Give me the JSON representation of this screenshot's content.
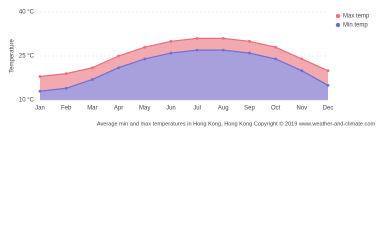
{
  "chart_data": {
    "type": "area",
    "y_label": "Temperature",
    "caption": "Average min and max temperatures in Hong Kong, Hong Kong   Copyright © 2019 www.weather-and-climate.com",
    "categories": [
      "Jan",
      "Feb",
      "Mar",
      "Apr",
      "May",
      "Jun",
      "Jul",
      "Aug",
      "Sep",
      "Oct",
      "Nov",
      "Dec"
    ],
    "series": [
      {
        "name": "Max temp",
        "color": "#e8707a",
        "fill": "#f2a9b0",
        "values": [
          18,
          19,
          21,
          25,
          28,
          30,
          31,
          31,
          30,
          28,
          24,
          20
        ]
      },
      {
        "name": "Min temp",
        "color": "#6f6fd2",
        "fill": "#a7a0dc",
        "values": [
          13,
          14,
          17,
          21,
          24,
          26,
          27,
          27,
          26,
          24,
          20,
          15
        ]
      }
    ],
    "ylim": [
      10,
      40
    ],
    "yticks": [
      {
        "value": 10,
        "label": "10 °C"
      },
      {
        "value": 25,
        "label": "25 °C"
      },
      {
        "value": 40,
        "label": "40 °C"
      }
    ],
    "grid": true
  }
}
